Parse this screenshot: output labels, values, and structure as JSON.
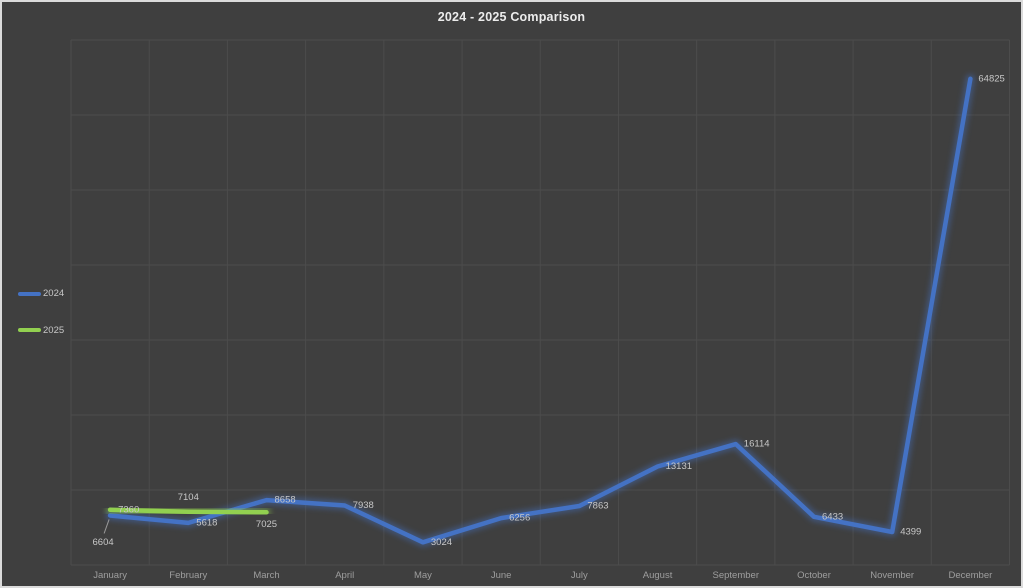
{
  "window": {
    "background_color": "#3F3F3F",
    "frame_border_color": "#DBDBDB"
  },
  "chart_data": {
    "type": "line",
    "title": "2024 - 2025 Comparison",
    "categories": [
      "January",
      "February",
      "March",
      "April",
      "May",
      "June",
      "July",
      "August",
      "September",
      "October",
      "November",
      "December"
    ],
    "series": [
      {
        "name": "2024",
        "color": "#4472C4",
        "values": [
          6604,
          5618,
          8658,
          7938,
          3024,
          6256,
          7863,
          13131,
          16114,
          6433,
          4399,
          64825
        ],
        "label_placements": [
          "below-leader",
          "right",
          "right",
          "right",
          "right",
          "right",
          "right",
          "right",
          "right",
          "right",
          "right",
          "right"
        ]
      },
      {
        "name": "2025",
        "color": "#92D050",
        "values": [
          7360,
          7104,
          7025
        ],
        "label_placements": [
          "right",
          "above",
          "below"
        ]
      }
    ],
    "xlabel": "",
    "ylabel": "",
    "ylim": [
      0,
      70000
    ],
    "y_gridline_step": 10000,
    "grid": true,
    "y_axis_labels_shown": false,
    "legend_position": "left",
    "gridline_color": "#4C4C4C",
    "data_label_color": "#C8C8C8",
    "axis_label_color": "#9E9E9E",
    "leader_line_color": "#9A9A9A"
  }
}
